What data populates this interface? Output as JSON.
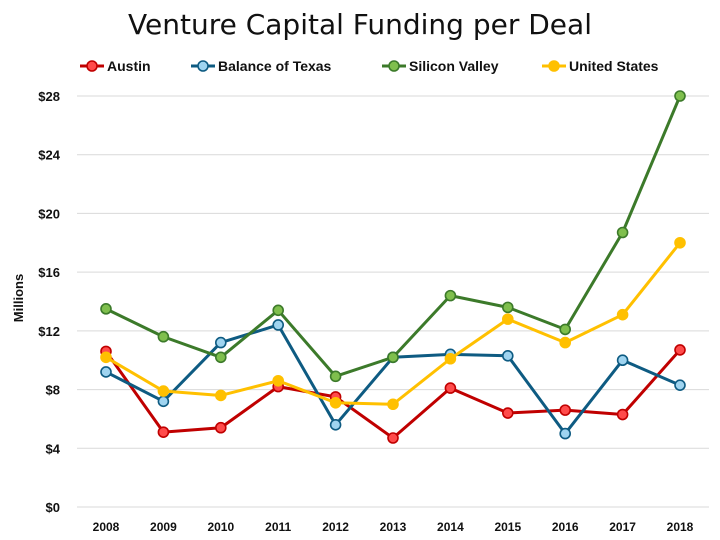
{
  "chart_data": {
    "type": "line",
    "title": "Venture Capital Funding per Deal",
    "ylabel": "Millions",
    "xlabel": "",
    "categories": [
      "2008",
      "2009",
      "2010",
      "2011",
      "2012",
      "2013",
      "2014",
      "2015",
      "2016",
      "2017",
      "2018"
    ],
    "ylim": [
      0,
      28
    ],
    "yticks": [
      0,
      4,
      8,
      12,
      16,
      20,
      24,
      28
    ],
    "ytick_labels": [
      "$0",
      "$4",
      "$8",
      "$12",
      "$16",
      "$20",
      "$24",
      "$28"
    ],
    "grid": true,
    "legend_position": "top",
    "series": [
      {
        "name": "Austin",
        "color": "#c00000",
        "marker_fill": "#ff4b4b",
        "values": [
          10.6,
          5.1,
          5.4,
          8.2,
          7.5,
          4.7,
          8.1,
          6.4,
          6.6,
          6.3,
          10.7
        ]
      },
      {
        "name": "Balance of Texas",
        "color": "#0e5b82",
        "marker_fill": "#9fd4f0",
        "values": [
          9.2,
          7.2,
          11.2,
          12.4,
          5.6,
          10.2,
          10.4,
          10.3,
          5.0,
          10.0,
          8.3
        ]
      },
      {
        "name": "Silicon Valley",
        "color": "#3c7a2a",
        "marker_fill": "#7fbf4d",
        "values": [
          13.5,
          11.6,
          10.2,
          13.4,
          8.9,
          10.2,
          14.4,
          13.6,
          12.1,
          18.7,
          28.0
        ]
      },
      {
        "name": "United States",
        "color": "#ffc000",
        "marker_fill": "#ffc000",
        "values": [
          10.2,
          7.9,
          7.6,
          8.6,
          7.1,
          7.0,
          10.1,
          12.8,
          11.2,
          13.1,
          18.0
        ]
      }
    ]
  }
}
